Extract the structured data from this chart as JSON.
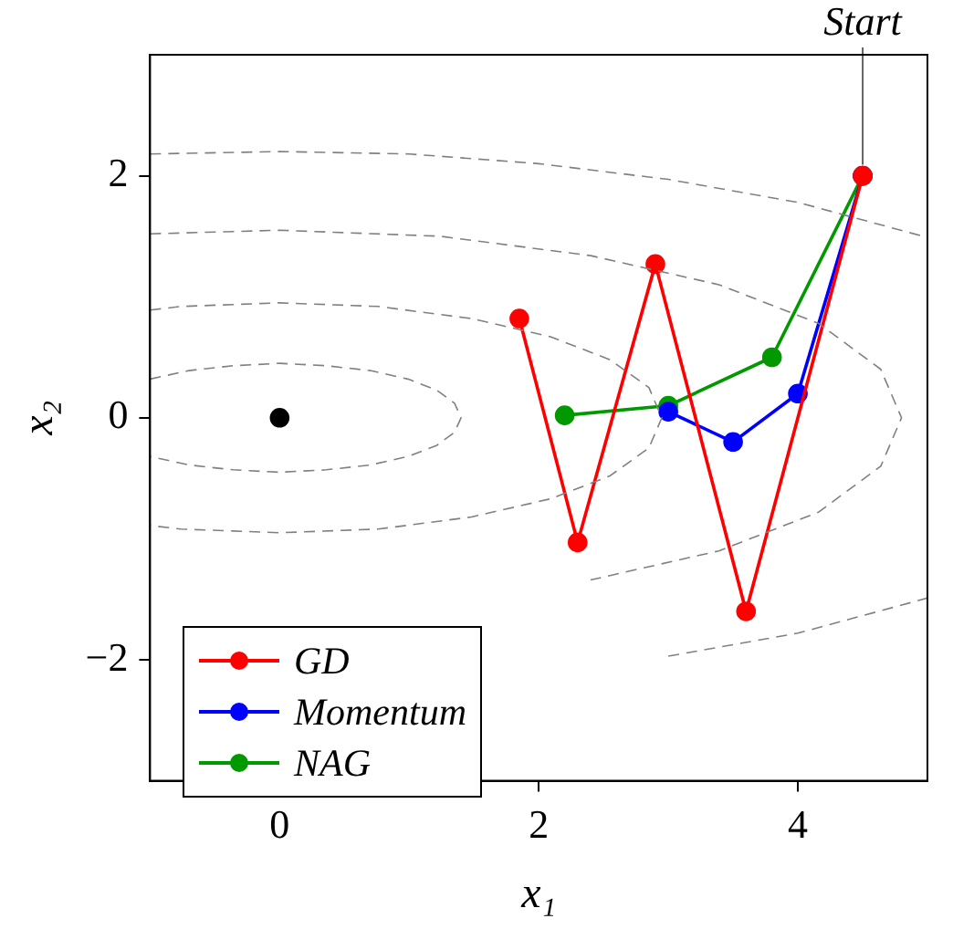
{
  "chart_data": {
    "type": "line",
    "xlabel": "x₁",
    "ylabel": "x₂",
    "xlim": [
      -1,
      5
    ],
    "ylim": [
      -3,
      3
    ],
    "xticks": [
      0,
      2,
      4
    ],
    "yticks": [
      {
        "value": -2,
        "label": "−2"
      },
      0,
      2
    ],
    "grid": false,
    "legend": "bottom left",
    "marker": "circle",
    "line_style": "solid",
    "annotations": [
      {
        "text": "Start",
        "x": 4.5,
        "y": 2
      }
    ],
    "series": [
      {
        "type": "line",
        "color": "#808080",
        "marker": "none",
        "line_style": "dashed",
        "x": [
          -1,
          -0.7,
          -0.36,
          0,
          0.36,
          0.7,
          0.99,
          1.21,
          1.35,
          1.4,
          1.35,
          1.21,
          0.99,
          0.7,
          0.36,
          0,
          -0.36,
          -0.7,
          -1
        ],
        "values": [
          0.32,
          0.39,
          0.43,
          0.45,
          0.43,
          0.39,
          0.32,
          0.23,
          0.12,
          0,
          -0.12,
          -0.23,
          -0.32,
          -0.39,
          -0.43,
          -0.45,
          -0.43,
          -0.39,
          -0.32
        ]
      },
      {
        "type": "line",
        "color": "#808080",
        "marker": "none",
        "line_style": "dashed",
        "x": [
          -1,
          -0.76,
          0,
          0.76,
          1.48,
          2.09,
          2.55,
          2.85,
          2.95,
          2.85,
          2.55,
          2.09,
          1.48,
          0.76,
          0,
          -0.76,
          -1
        ],
        "values": [
          0.89,
          0.92,
          0.95,
          0.92,
          0.82,
          0.67,
          0.48,
          0.25,
          0,
          -0.25,
          -0.48,
          -0.67,
          -0.82,
          -0.92,
          -0.95,
          -0.92,
          -0.89
        ]
      },
      {
        "type": "line",
        "color": "#808080",
        "marker": "none",
        "line_style": "dashed",
        "x": [
          -1,
          0,
          1.24,
          2.4,
          3.39,
          4.16,
          4.64,
          4.8,
          4.64,
          4.16,
          3.39,
          2.4
        ],
        "values": [
          1.52,
          1.55,
          1.5,
          1.34,
          1.1,
          0.78,
          0.4,
          0,
          -0.4,
          -0.78,
          -1.1,
          -1.34
        ]
      },
      {
        "type": "line",
        "color": "#808080",
        "marker": "none",
        "line_style": "dashed",
        "x": [
          -1,
          0,
          1,
          2,
          3,
          4,
          5
        ],
        "values": [
          2.18,
          2.2,
          2.18,
          2.1,
          1.97,
          1.78,
          1.49
        ]
      },
      {
        "type": "line",
        "color": "#808080",
        "marker": "none",
        "line_style": "dashed",
        "x": [
          3,
          4,
          5
        ],
        "values": [
          -1.97,
          -1.78,
          -1.49
        ]
      },
      {
        "type": "scatter",
        "color": "#000000",
        "marker": "circle",
        "x": [
          0
        ],
        "values": [
          0
        ]
      },
      {
        "name": "GD",
        "color": "#ff0000",
        "x": [
          4.5,
          3.6,
          2.9,
          2.3,
          1.85
        ],
        "values": [
          2,
          -1.6,
          1.27,
          -1.03,
          0.82
        ]
      },
      {
        "name": "Momentum",
        "color": "#0000ff",
        "x": [
          4.5,
          4,
          3.5,
          3
        ],
        "values": [
          2,
          0.2,
          -0.2,
          0.05
        ]
      },
      {
        "name": "NAG",
        "color": "#009900",
        "x": [
          4.5,
          3.8,
          3,
          2.2
        ],
        "values": [
          2,
          0.5,
          0.1,
          0.02
        ]
      }
    ]
  }
}
